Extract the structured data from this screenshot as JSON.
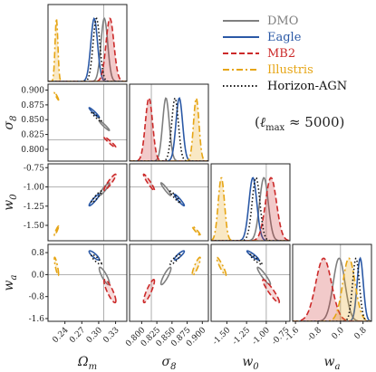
{
  "chart_data": {
    "type": "corner",
    "parameters": [
      {
        "key": "om",
        "label": "Ωm",
        "label_main": "Ω",
        "label_sub": "m",
        "range": [
          0.21,
          0.35
        ],
        "ticks": [
          "0.24",
          "0.27",
          "0.30",
          "0.33"
        ],
        "tick_values": [
          0.24,
          0.27,
          0.3,
          0.33
        ],
        "fiducial": 0.3089
      },
      {
        "key": "s8",
        "label": "σ8",
        "label_main": "σ",
        "label_sub": "8",
        "range": [
          0.78,
          0.91
        ],
        "ticks": [
          "0.800",
          "0.825",
          "0.850",
          "0.875",
          "0.900"
        ],
        "tick_values": [
          0.8,
          0.825,
          0.85,
          0.875,
          0.9
        ],
        "fiducial": 0.8159
      },
      {
        "key": "w0",
        "label": "w0",
        "label_main": "w",
        "label_sub": "0",
        "range": [
          -1.7,
          -0.7
        ],
        "ticks": [
          "-1.50",
          "-1.25",
          "-1.00",
          "-0.75"
        ],
        "tick_values": [
          -1.5,
          -1.25,
          -1.0,
          -0.75
        ],
        "fiducial": -1.0
      },
      {
        "key": "wa",
        "label": "wa",
        "label_main": "w",
        "label_sub": "a",
        "range": [
          -1.7,
          1.1
        ],
        "ticks": [
          "-1.6",
          "-0.8",
          "0.0",
          "0.8"
        ],
        "tick_values": [
          -1.6,
          -0.8,
          0.0,
          0.8
        ],
        "fiducial": 0.0
      }
    ],
    "legend": {
      "placement": "top-right"
    },
    "annotation": "(ℓmax ≈ 5000)",
    "annotation_parts": {
      "open": "(",
      "ell": "ℓ",
      "sub": "max",
      "rest": " ≈ 5000)"
    },
    "series": [
      {
        "name": "DMO",
        "color": "#7f7f7f",
        "dash": "solid",
        "fill": false,
        "mean": {
          "om": 0.31,
          "s8": 0.84,
          "w0": -1.03,
          "wa": -0.05
        },
        "sigma": {
          "om": 0.006,
          "s8": 0.0055,
          "w0": 0.055,
          "wa": 0.21
        }
      },
      {
        "name": "Eagle",
        "color": "#2b59a6",
        "dash": "solid",
        "fill": false,
        "mean": {
          "om": 0.292,
          "s8": 0.862,
          "w0": -1.17,
          "wa": 0.7
        },
        "sigma": {
          "om": 0.006,
          "s8": 0.0055,
          "w0": 0.05,
          "wa": 0.11
        }
      },
      {
        "name": "MB2",
        "color": "#cc2a2a",
        "dash": "dashed",
        "fill": true,
        "mean": {
          "om": 0.32,
          "s8": 0.812,
          "w0": -0.94,
          "wa": -0.6
        },
        "sigma": {
          "om": 0.007,
          "s8": 0.006,
          "w0": 0.07,
          "wa": 0.28
        }
      },
      {
        "name": "Illustris",
        "color": "#e6a515",
        "dash": "dashdot",
        "fill": true,
        "mean": {
          "om": 0.225,
          "s8": 0.89,
          "w0": -1.57,
          "wa": 0.3
        },
        "sigma": {
          "om": 0.0025,
          "s8": 0.0045,
          "w0": 0.04,
          "wa": 0.22
        }
      },
      {
        "name": "Horizon-AGN",
        "color": "#111111",
        "dash": "dotted",
        "fill": false,
        "mean": {
          "om": 0.296,
          "s8": 0.855,
          "w0": -1.13,
          "wa": 0.55
        },
        "sigma": {
          "om": 0.006,
          "s8": 0.0055,
          "w0": 0.05,
          "wa": 0.12
        }
      }
    ],
    "correlations": {
      "om_s8": -0.96,
      "om_w0": 0.93,
      "s8_w0": -0.95,
      "om_wa": -0.85,
      "s8_wa": 0.88,
      "w0_wa": -0.93
    },
    "styles": {
      "axis": "#222222",
      "fiducial_line": "#9a9a9a"
    }
  }
}
